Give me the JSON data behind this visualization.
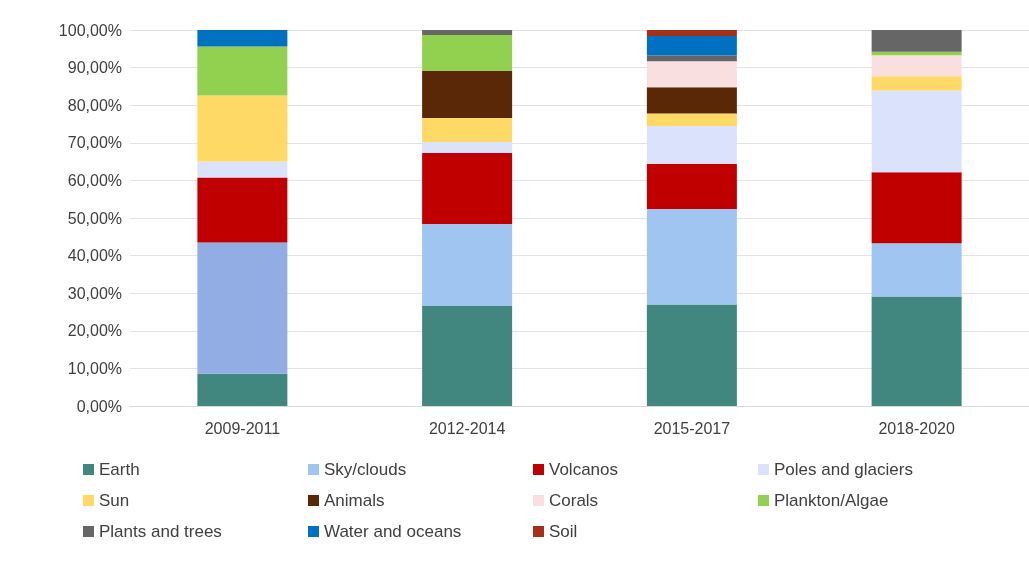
{
  "chart_data": {
    "type": "bar",
    "stacked": true,
    "categories": [
      "2009-2011",
      "2012-2014",
      "2015-2017",
      "2018-2020"
    ],
    "ylim": [
      0,
      100
    ],
    "yticks": [
      {
        "value": 0,
        "label": "0,00%"
      },
      {
        "value": 10,
        "label": "10,00%"
      },
      {
        "value": 20,
        "label": "20,00%"
      },
      {
        "value": 30,
        "label": "30,00%"
      },
      {
        "value": 40,
        "label": "40,00%"
      },
      {
        "value": 50,
        "label": "50,00%"
      },
      {
        "value": 60,
        "label": "60,00%"
      },
      {
        "value": 70,
        "label": "70,00%"
      },
      {
        "value": 80,
        "label": "80,00%"
      },
      {
        "value": 90,
        "label": "90,00%"
      },
      {
        "value": 100,
        "label": "100,00%"
      }
    ],
    "grid": "y",
    "legend": "bottom",
    "series": [
      {
        "name": "Earth",
        "color": "#41867f",
        "values": [
          8.6,
          26.6,
          27.0,
          29.1
        ]
      },
      {
        "name": "Sky/clouds",
        "color": "#9fc5f0",
        "colors": [
          "#91ade4",
          "#9fc5f0",
          "#9fc5f0",
          "#9fc5f0"
        ],
        "values": [
          34.9,
          21.8,
          25.4,
          14.2
        ]
      },
      {
        "name": "Volcanos",
        "color": "#c00000",
        "values": [
          17.3,
          18.9,
          12.0,
          18.9
        ]
      },
      {
        "name": "Poles and glaciers",
        "color": "#dae3fb",
        "values": [
          4.2,
          2.9,
          10.1,
          21.7
        ]
      },
      {
        "name": "Sun",
        "color": "#ffd966",
        "values": [
          17.6,
          6.4,
          3.3,
          3.8
        ]
      },
      {
        "name": "Animals",
        "color": "#5a2806",
        "values": [
          0,
          12.5,
          7.0,
          0
        ]
      },
      {
        "name": "Corals",
        "color": "#f9dfe0",
        "values": [
          0,
          0,
          6.9,
          5.6
        ]
      },
      {
        "name": "Plankton/Algae",
        "color": "#92d050",
        "values": [
          13.0,
          9.6,
          0,
          0.9
        ]
      },
      {
        "name": "Plants and trees",
        "color": "#666666",
        "values": [
          0,
          1.3,
          1.5,
          5.8
        ]
      },
      {
        "name": "Water and oceans",
        "color": "#0070c0",
        "values": [
          4.4,
          0,
          5.2,
          0
        ]
      },
      {
        "name": "Soil",
        "color": "#a5301a",
        "values": [
          0,
          0,
          1.6,
          0
        ]
      }
    ]
  }
}
